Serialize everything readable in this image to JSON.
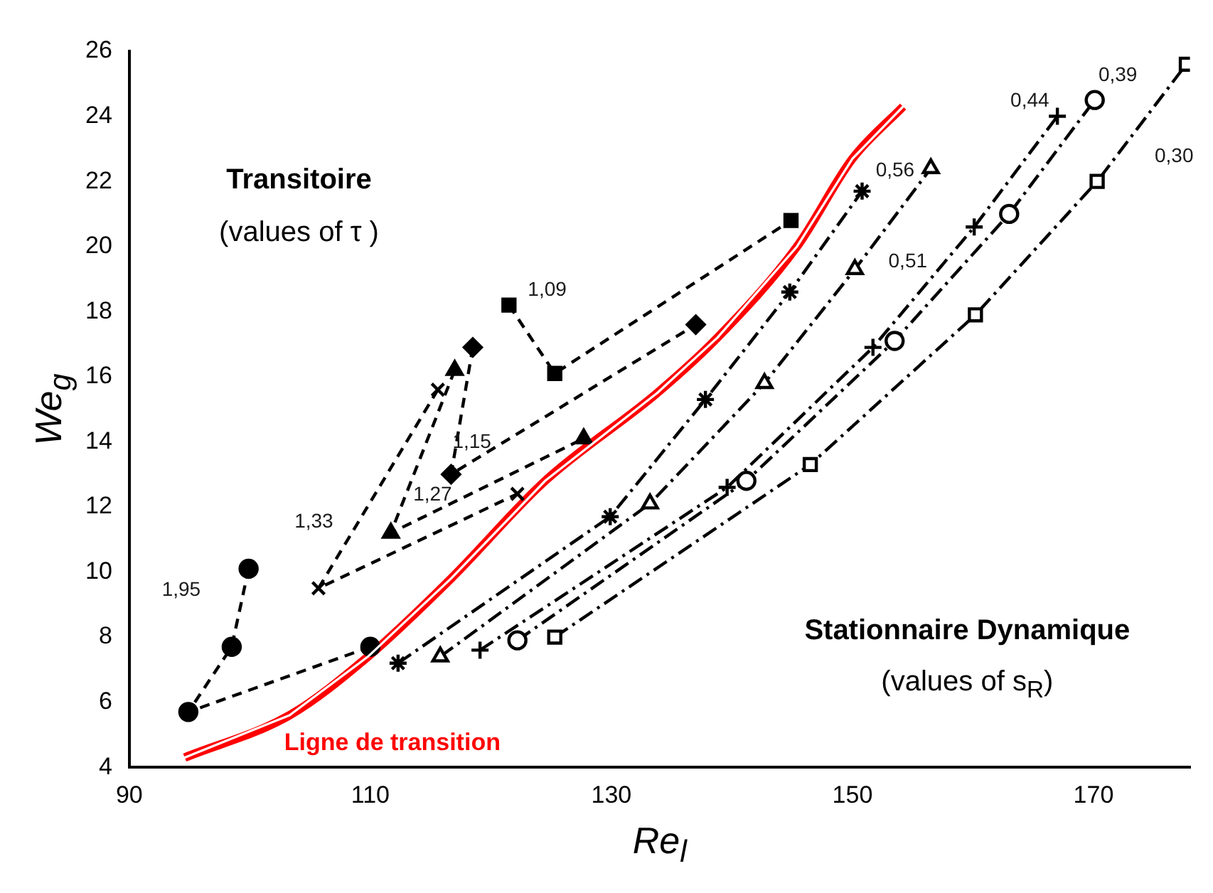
{
  "chart_data": {
    "type": "line",
    "xlabel": "Re$_{l}$",
    "ylabel": "We$_{g}$",
    "xlim": [
      90,
      178
    ],
    "xticks": [
      90,
      110,
      130,
      150,
      170
    ],
    "ylim": [
      4,
      26
    ],
    "yticks": [
      4,
      6,
      8,
      10,
      12,
      14,
      16,
      18,
      20,
      22,
      24,
      26
    ],
    "grid": false,
    "legend": false,
    "series": [
      {
        "color": "#000000",
        "marker": "circle",
        "line_style": "dashed",
        "x": [
          99.9,
          98.5,
          94.9,
          110.0
        ],
        "values": [
          10.1,
          7.7,
          5.7,
          7.7
        ]
      },
      {
        "color": "#000000",
        "marker": "cross",
        "line_style": "dashed",
        "x": [
          115.6,
          105.7,
          122.2
        ],
        "values": [
          15.6,
          9.5,
          12.4
        ]
      },
      {
        "color": "#000000",
        "marker": "triangle",
        "line_style": "dashed",
        "x": [
          117.0,
          111.7,
          127.7
        ],
        "values": [
          16.2,
          11.2,
          14.1
        ]
      },
      {
        "color": "#000000",
        "marker": "diamond",
        "line_style": "dashed",
        "x": [
          118.5,
          116.7,
          137.0
        ],
        "values": [
          16.9,
          13.0,
          17.6
        ]
      },
      {
        "color": "#000000",
        "marker": "square",
        "line_style": "dashed",
        "x": [
          121.5,
          125.3,
          144.9
        ],
        "values": [
          18.2,
          16.1,
          20.8
        ]
      },
      {
        "color": "#000000",
        "marker": "cross",
        "line_style": "dashdot",
        "x": [
          112.3,
          129.9,
          137.8,
          144.8,
          150.8
        ],
        "values": [
          7.2,
          11.7,
          15.3,
          18.6,
          21.7
        ]
      },
      {
        "color": "#000000",
        "marker": "triangle",
        "line_style": "dashdot",
        "x": [
          115.8,
          133.2,
          142.7,
          150.2,
          156.5
        ],
        "values": [
          7.4,
          12.1,
          15.8,
          19.3,
          22.4
        ]
      },
      {
        "color": "#000000",
        "marker": "cross",
        "line_style": "dashdot",
        "x": [
          119.1,
          139.6,
          151.7,
          160.1,
          167.0
        ],
        "values": [
          7.6,
          12.6,
          16.9,
          20.6,
          24.0
        ]
      },
      {
        "color": "#000000",
        "marker": "circle",
        "line_style": "dashdot",
        "x": [
          122.2,
          141.2,
          153.5,
          163.0,
          170.1
        ],
        "values": [
          7.9,
          12.8,
          17.1,
          21.0,
          24.5
        ]
      },
      {
        "color": "#000000",
        "marker": "square",
        "line_style": "dashdot",
        "x": [
          125.3,
          146.5,
          160.2,
          170.3,
          177.7
        ],
        "values": [
          8.0,
          13.3,
          17.9,
          22.0,
          25.6
        ]
      },
      {
        "name": "Ligne de transition",
        "color": "#ff0000",
        "marker": "none",
        "line_style": "solid",
        "x": [
          94.6,
          103.3,
          109.8,
          116.7,
          124.5,
          133.8,
          138.8,
          145.4,
          150.0,
          154.2
        ],
        "values": [
          4.3,
          5.6,
          7.4,
          9.8,
          12.8,
          15.5,
          17.2,
          20.0,
          22.7,
          24.3
        ]
      }
    ],
    "annotations": [
      "Transitoire",
      "(values of τ )",
      "Stationnaire Dynamique",
      "(values of s$_{R}$)",
      "1,95",
      "1,33",
      "1,27",
      "1,15",
      "1,09",
      "0,56",
      "0,51",
      "0,44",
      "0,39",
      "0,30"
    ]
  }
}
